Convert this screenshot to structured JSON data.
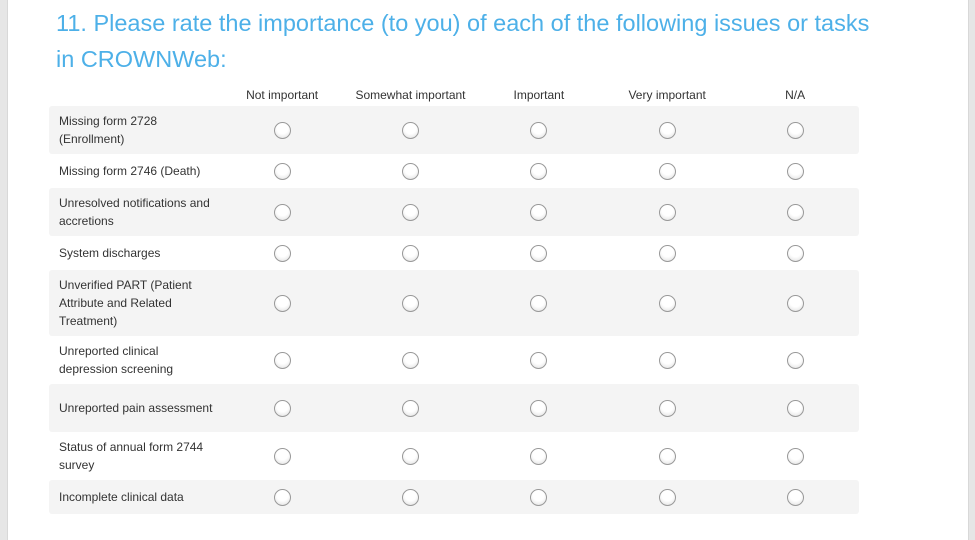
{
  "question": {
    "title": "11. Please rate the importance (to you) of each of the following issues or tasks in CROWNWeb:",
    "columns": [
      "Not important",
      "Somewhat important",
      "Important",
      "Very important",
      "N/A"
    ],
    "rows": [
      {
        "label": "Missing form 2728 (Enrollment)",
        "h": 48
      },
      {
        "label": "Missing form 2746 (Death)",
        "h": 34
      },
      {
        "label": "Unresolved notifications and accretions",
        "h": 48
      },
      {
        "label": "System discharges",
        "h": 34
      },
      {
        "label": "Unverified PART (Patient Attribute and Related Treatment)",
        "h": 66
      },
      {
        "label": "Unreported clinical depression screening",
        "h": 48
      },
      {
        "label": "Unreported pain assessment",
        "h": 48
      },
      {
        "label": "Status of annual form 2744 survey",
        "h": 48
      },
      {
        "label": "Incomplete clinical data",
        "h": 34
      }
    ]
  },
  "colors": {
    "title": "#4db0e8",
    "row_shade": "#f4f4f4"
  }
}
